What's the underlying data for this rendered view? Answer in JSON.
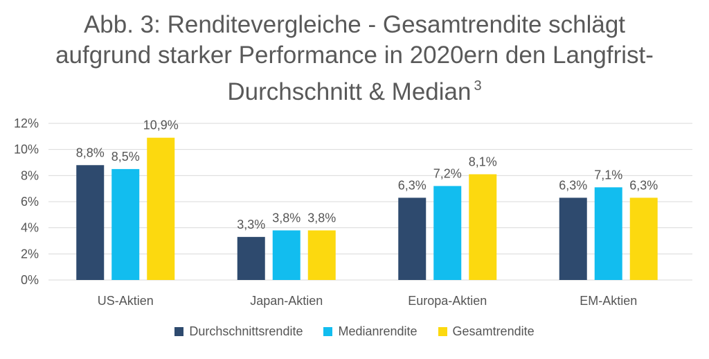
{
  "title": {
    "line1": "Abb. 3: Renditevergleiche - Gesamtrendite schlägt",
    "line2": "aufgrund starker Performance in 2020ern den Langfrist-",
    "line3": "Durchschnitt & Median",
    "footnote": "3"
  },
  "colors": {
    "durchschnitt": "#2e4a6e",
    "median": "#12bdef",
    "gesamt": "#fcd90f",
    "grid": "#d9d9d9",
    "text": "#555555"
  },
  "chart_data": {
    "type": "bar",
    "categories": [
      "US-Aktien",
      "Japan-Aktien",
      "Europa-Aktien",
      "EM-Aktien"
    ],
    "series": [
      {
        "name": "Durchschnittsrendite",
        "values": [
          8.8,
          3.3,
          6.3,
          6.3
        ],
        "labels": [
          "8,8%",
          "3,3%",
          "6,3%",
          "6,3%"
        ],
        "color": "#2e4a6e"
      },
      {
        "name": "Medianrendite",
        "values": [
          8.5,
          3.8,
          7.2,
          7.1
        ],
        "labels": [
          "8,5%",
          "3,8%",
          "7,2%",
          "7,1%"
        ],
        "color": "#12bdef"
      },
      {
        "name": "Gesamtrendite",
        "values": [
          10.9,
          3.8,
          8.1,
          6.3
        ],
        "labels": [
          "10,9%",
          "3,8%",
          "8,1%",
          "6,3%"
        ],
        "color": "#fcd90f"
      }
    ],
    "yticks": [
      0,
      2,
      4,
      6,
      8,
      10,
      12
    ],
    "ytick_labels": [
      "0%",
      "2%",
      "4%",
      "6%",
      "8%",
      "10%",
      "12%"
    ],
    "ylim": [
      0,
      12
    ],
    "grid": true,
    "legend": "bottom"
  }
}
